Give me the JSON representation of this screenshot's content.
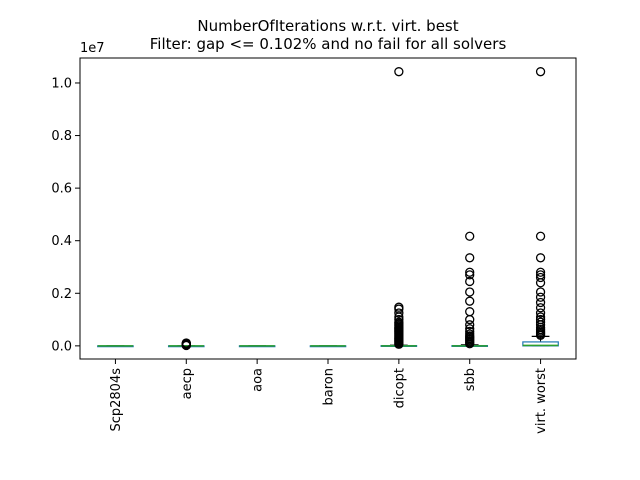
{
  "chart_data": {
    "type": "box",
    "title": "NumberOfIterations w.r.t. virt. best",
    "subtitle": "Filter: gap <= 0.102% and no fail for all solvers",
    "y_scale_label": "1e7",
    "ylim": [
      -500000,
      10950000
    ],
    "y_ticks": [
      0,
      2000000,
      4000000,
      6000000,
      8000000,
      10000000
    ],
    "y_tick_labels": [
      "0.0",
      "0.2",
      "0.4",
      "0.6",
      "0.8",
      "1.0"
    ],
    "categories": [
      "Scp2804s",
      "aecp",
      "aoa",
      "baron",
      "dicopt",
      "sbb",
      "virt. worst"
    ],
    "boxes": [
      {
        "name": "Scp2804s",
        "whislo": 0,
        "q1": 0,
        "med": 0,
        "q3": 0,
        "whishi": 0,
        "fliers": []
      },
      {
        "name": "aecp",
        "whislo": 0,
        "q1": 0,
        "med": 0,
        "q3": 0,
        "whishi": 0,
        "fliers": [
          15000,
          30000,
          45000,
          60000,
          75000,
          90000,
          110000
        ]
      },
      {
        "name": "aoa",
        "whislo": 0,
        "q1": 0,
        "med": 0,
        "q3": 0,
        "whishi": 0,
        "fliers": []
      },
      {
        "name": "baron",
        "whislo": 0,
        "q1": 0,
        "med": 0,
        "q3": 0,
        "whishi": 0,
        "fliers": []
      },
      {
        "name": "dicopt",
        "whislo": 0,
        "q1": 0,
        "med": 0,
        "q3": 10000,
        "whishi": 25000,
        "fliers": [
          60000,
          100000,
          140000,
          180000,
          220000,
          260000,
          300000,
          340000,
          380000,
          420000,
          460000,
          500000,
          540000,
          580000,
          620000,
          660000,
          700000,
          750000,
          800000,
          850000,
          900000,
          1000000,
          1100000,
          1250000,
          1400000,
          1470000,
          10430000
        ]
      },
      {
        "name": "sbb",
        "whislo": 0,
        "q1": 0,
        "med": 0,
        "q3": 10000,
        "whishi": 40000,
        "fliers": [
          80000,
          130000,
          180000,
          230000,
          280000,
          330000,
          380000,
          450000,
          550000,
          650000,
          800000,
          1000000,
          1300000,
          1700000,
          2050000,
          2450000,
          2700000,
          2800000,
          3350000,
          4170000
        ]
      },
      {
        "name": "virt. worst",
        "whislo": 0,
        "q1": 0,
        "med": 20000,
        "q3": 150000,
        "whishi": 360000,
        "fliers": [
          400000,
          450000,
          500000,
          560000,
          620000,
          700000,
          800000,
          900000,
          1000000,
          1100000,
          1250000,
          1450000,
          1650000,
          1850000,
          2050000,
          2400000,
          2600000,
          2700000,
          2800000,
          3350000,
          4170000,
          10430000
        ]
      }
    ],
    "colors": {
      "box": "#1f77b4",
      "median": "#2ca02c",
      "whisker": "#000000",
      "flier": "#000000"
    },
    "grid": false
  }
}
